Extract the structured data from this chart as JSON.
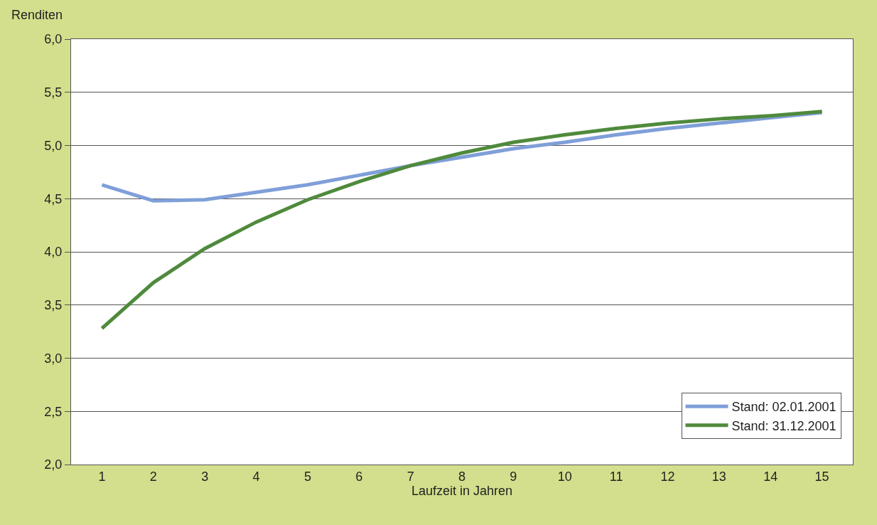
{
  "chart_data": {
    "type": "line",
    "ylabel": "Renditen",
    "xlabel": "Laufzeit in Jahren",
    "x": [
      1,
      2,
      3,
      4,
      5,
      6,
      7,
      8,
      9,
      10,
      11,
      12,
      13,
      14,
      15
    ],
    "series": [
      {
        "name": "Stand: 02.01.2001",
        "color": "#7f9fd8",
        "values": [
          4.63,
          4.48,
          4.49,
          4.56,
          4.63,
          4.72,
          4.81,
          4.89,
          4.97,
          5.03,
          5.1,
          5.16,
          5.21,
          5.26,
          5.31
        ]
      },
      {
        "name": "Stand: 31.12.2001",
        "color": "#4f8a3c",
        "values": [
          3.28,
          3.71,
          4.03,
          4.28,
          4.49,
          4.66,
          4.81,
          4.93,
          5.03,
          5.1,
          5.16,
          5.21,
          5.25,
          5.28,
          5.32
        ]
      }
    ],
    "xlim": [
      0.4,
      15.6
    ],
    "xticks": [
      1,
      2,
      3,
      4,
      5,
      6,
      7,
      8,
      9,
      10,
      11,
      12,
      13,
      14,
      15
    ],
    "ylim": [
      2.0,
      6.0
    ],
    "yticks": [
      {
        "value": 2.0,
        "label": "2,0"
      },
      {
        "value": 2.5,
        "label": "2,5"
      },
      {
        "value": 3.0,
        "label": "3,0"
      },
      {
        "value": 3.5,
        "label": "3,5"
      },
      {
        "value": 4.0,
        "label": "4,0"
      },
      {
        "value": 4.5,
        "label": "4,5"
      },
      {
        "value": 5.0,
        "label": "5,0"
      },
      {
        "value": 5.5,
        "label": "5,5"
      },
      {
        "value": 6.0,
        "label": "6,0"
      }
    ],
    "grid": "y",
    "legend": "bottom right",
    "marker": "none",
    "line_style": "solid"
  }
}
